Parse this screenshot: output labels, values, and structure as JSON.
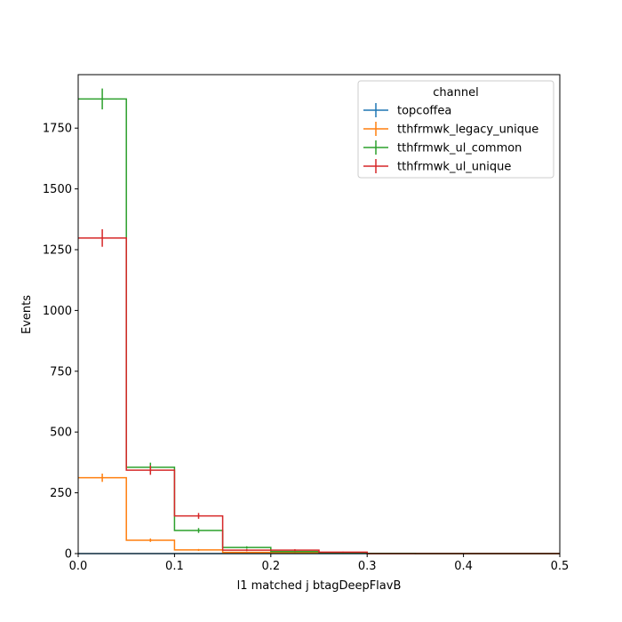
{
  "chart_data": {
    "type": "histogram-step",
    "xlabel": "l1 matched j btagDeepFlavB",
    "ylabel": "Events",
    "xlim": [
      0,
      0.5
    ],
    "ylim": [
      0,
      1970
    ],
    "xticks": [
      "0.0",
      "0.1",
      "0.2",
      "0.3",
      "0.4",
      "0.5"
    ],
    "yticks": [
      "0",
      "250",
      "500",
      "750",
      "1000",
      "1250",
      "1500",
      "1750"
    ],
    "legend": {
      "title": "channel",
      "placement": "upper-right"
    },
    "bin_edges": [
      0,
      0.05,
      0.1,
      0.15,
      0.2,
      0.25,
      0.3,
      0.35,
      0.4,
      0.45,
      0.5
    ],
    "series": [
      {
        "name": "topcoffea",
        "color": "#1f77b4",
        "values": [
          0,
          0,
          0,
          0,
          0,
          0,
          0,
          0,
          0,
          0
        ],
        "errors": [
          0,
          0,
          0,
          0,
          0,
          0,
          0,
          0,
          0,
          0
        ]
      },
      {
        "name": "tthfrmwk_legacy_unique",
        "color": "#ff7f0e",
        "values": [
          312,
          55,
          15,
          5,
          3,
          2,
          0,
          0,
          0,
          0
        ],
        "errors": [
          17,
          7,
          4,
          2,
          1,
          1,
          0,
          0,
          0,
          0
        ]
      },
      {
        "name": "tthfrmwk_ul_common",
        "color": "#2ca02c",
        "values": [
          1870,
          355,
          95,
          25,
          8,
          4,
          1,
          0,
          0,
          0
        ],
        "errors": [
          43,
          19,
          10,
          5,
          3,
          2,
          1,
          0,
          0,
          0
        ]
      },
      {
        "name": "tthfrmwk_ul_unique",
        "color": "#d62728",
        "values": [
          1298,
          343,
          155,
          14,
          14,
          6,
          0,
          0,
          0,
          0
        ],
        "errors": [
          36,
          19,
          12,
          4,
          4,
          2,
          0,
          0,
          0,
          0
        ]
      }
    ]
  }
}
